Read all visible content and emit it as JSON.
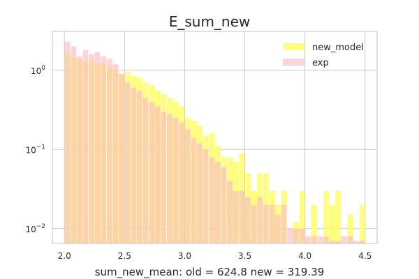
{
  "chart_data": {
    "type": "bar",
    "title": "E_sum_new",
    "xlabel": "sum_new_mean: old = 624.8 new = 319.39",
    "ylabel": "",
    "y_scale": "log",
    "xlim": [
      1.9,
      4.6
    ],
    "ylim": [
      0.0065,
      3.1
    ],
    "grid": true,
    "legend_position": "top-right",
    "bin_width": 0.05,
    "x_ticks": [
      {
        "value": 2.0,
        "label": "2.0"
      },
      {
        "value": 2.5,
        "label": "2.5"
      },
      {
        "value": 3.0,
        "label": "3.0"
      },
      {
        "value": 3.5,
        "label": "3.5"
      },
      {
        "value": 4.0,
        "label": "4.0"
      },
      {
        "value": 4.5,
        "label": "4.5"
      }
    ],
    "y_ticks": [
      {
        "value": 0.01,
        "base": "10",
        "exp": "−2"
      },
      {
        "value": 0.1,
        "base": "10",
        "exp": "−1"
      },
      {
        "value": 1,
        "base": "10",
        "exp": "0"
      }
    ],
    "series": [
      {
        "name": "new_model",
        "color": "#ffff66",
        "bins": [
          [
            2.0,
            1.65
          ],
          [
            2.05,
            1.45
          ],
          [
            2.1,
            1.4
          ],
          [
            2.15,
            1.3
          ],
          [
            2.2,
            1.35
          ],
          [
            2.25,
            1.2
          ],
          [
            2.3,
            1.25
          ],
          [
            2.35,
            1.1
          ],
          [
            2.4,
            1.0
          ],
          [
            2.45,
            0.9
          ],
          [
            2.5,
            0.95
          ],
          [
            2.55,
            0.85
          ],
          [
            2.6,
            0.8
          ],
          [
            2.65,
            0.7
          ],
          [
            2.7,
            0.65
          ],
          [
            2.75,
            0.55
          ],
          [
            2.8,
            0.5
          ],
          [
            2.85,
            0.45
          ],
          [
            2.9,
            0.4
          ],
          [
            2.95,
            0.35
          ],
          [
            3.0,
            0.25
          ],
          [
            3.05,
            0.23
          ],
          [
            3.1,
            0.2
          ],
          [
            3.15,
            0.15
          ],
          [
            3.2,
            0.16
          ],
          [
            3.25,
            0.11
          ],
          [
            3.3,
            0.08
          ],
          [
            3.35,
            0.08
          ],
          [
            3.4,
            0.07
          ],
          [
            3.45,
            0.09
          ],
          [
            3.5,
            0.05
          ],
          [
            3.55,
            0.03
          ],
          [
            3.6,
            0.05
          ],
          [
            3.65,
            0.05
          ],
          [
            3.7,
            0.03
          ],
          [
            3.75,
            0.02
          ],
          [
            3.8,
            0.03
          ],
          [
            3.9,
            0.012
          ],
          [
            3.95,
            0.03
          ],
          [
            4.05,
            0.02
          ],
          [
            4.15,
            0.03
          ],
          [
            4.2,
            0.02
          ],
          [
            4.25,
            0.03
          ],
          [
            4.35,
            0.015
          ],
          [
            4.45,
            0.02
          ]
        ]
      },
      {
        "name": "exp",
        "color": "#ffb6c1",
        "bins": [
          [
            2.0,
            2.3
          ],
          [
            2.05,
            2.0
          ],
          [
            2.1,
            1.5
          ],
          [
            2.15,
            1.8
          ],
          [
            2.2,
            1.6
          ],
          [
            2.25,
            1.7
          ],
          [
            2.3,
            1.5
          ],
          [
            2.35,
            1.4
          ],
          [
            2.4,
            1.2
          ],
          [
            2.45,
            0.9
          ],
          [
            2.5,
            0.7
          ],
          [
            2.55,
            0.6
          ],
          [
            2.6,
            0.55
          ],
          [
            2.65,
            0.45
          ],
          [
            2.7,
            0.4
          ],
          [
            2.75,
            0.35
          ],
          [
            2.8,
            0.3
          ],
          [
            2.85,
            0.28
          ],
          [
            2.9,
            0.25
          ],
          [
            2.95,
            0.22
          ],
          [
            3.0,
            0.18
          ],
          [
            3.05,
            0.14
          ],
          [
            3.1,
            0.12
          ],
          [
            3.15,
            0.1
          ],
          [
            3.2,
            0.08
          ],
          [
            3.25,
            0.07
          ],
          [
            3.3,
            0.06
          ],
          [
            3.35,
            0.04
          ],
          [
            3.4,
            0.03
          ],
          [
            3.45,
            0.03
          ],
          [
            3.5,
            0.025
          ],
          [
            3.55,
            0.02
          ],
          [
            3.6,
            0.025
          ],
          [
            3.65,
            0.02
          ],
          [
            3.7,
            0.02
          ],
          [
            3.75,
            0.015
          ],
          [
            3.8,
            0.02
          ],
          [
            3.85,
            0.01
          ],
          [
            3.9,
            0.01
          ],
          [
            3.95,
            0.01
          ],
          [
            4.0,
            0.008
          ],
          [
            4.05,
            0.008
          ],
          [
            4.1,
            0.008
          ],
          [
            4.15,
            0.008
          ],
          [
            4.2,
            0.007
          ],
          [
            4.25,
            0.007
          ],
          [
            4.3,
            0.008
          ],
          [
            4.35,
            0.008
          ],
          [
            4.4,
            0.007
          ],
          [
            4.45,
            0.007
          ]
        ]
      }
    ]
  }
}
